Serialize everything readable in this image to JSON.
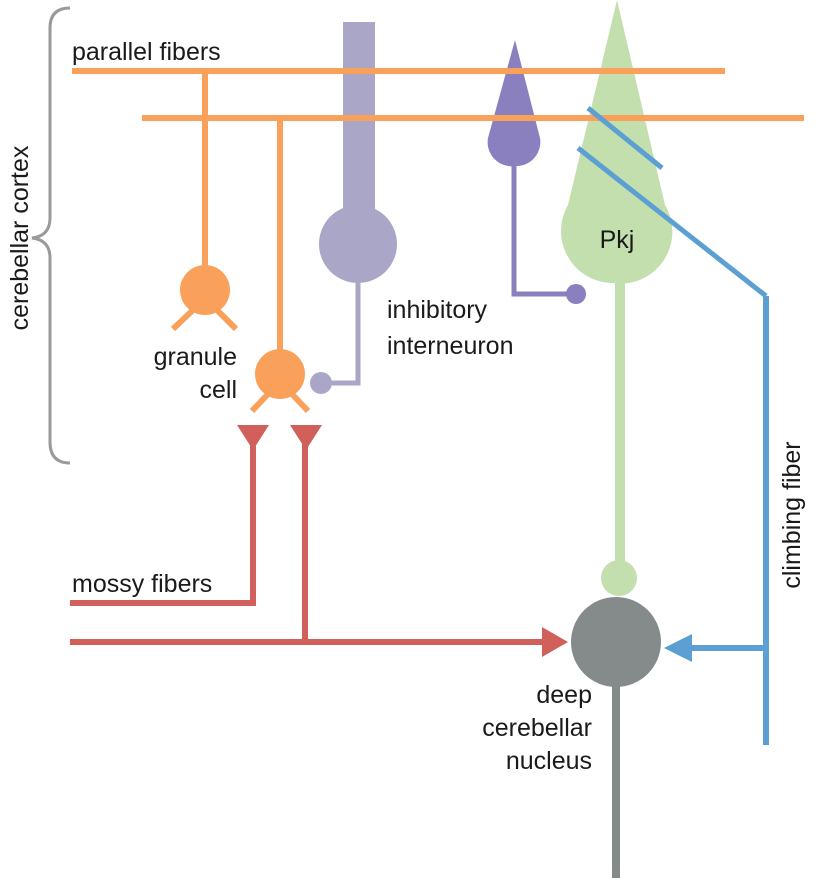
{
  "labels": {
    "parallel_fibers": "parallel fibers",
    "cerebellar_cortex": "cerebellar cortex",
    "granule_cell_line1": "granule",
    "granule_cell_line2": "cell",
    "inhibitory_line1": "inhibitory",
    "inhibitory_line2": "interneuron",
    "purkinje": "Pkj",
    "mossy_fibers": "mossy fibers",
    "climbing_fiber": "climbing fiber",
    "dcn_line1": "deep",
    "dcn_line2": "cerebellar",
    "dcn_line3": "nucleus"
  },
  "colors": {
    "granule": "#f9a15a",
    "mossy": "#d2605a",
    "interneuron_large": "#a9a6c8",
    "interneuron_small": "#8a7fbf",
    "purkinje": "#c4dfae",
    "climbing": "#5b9fd3",
    "nucleus": "#858b8b",
    "bracket": "#9a9a9a",
    "text": "#1a1a1a"
  }
}
